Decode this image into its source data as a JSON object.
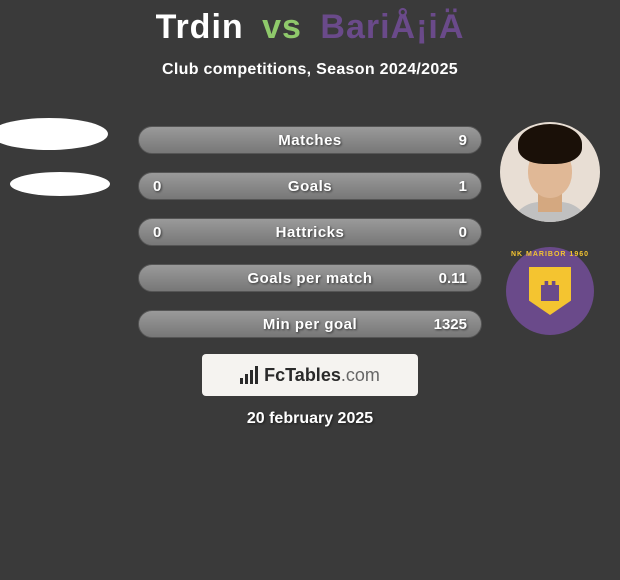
{
  "header": {
    "player1": "Trdin",
    "vs": "vs",
    "player2": "BariÅ¡iÄ",
    "subtitle": "Club competitions, Season 2024/2025",
    "colors": {
      "player1": "#ffffff",
      "vs": "#8fc96b",
      "player2": "#6a4a8a",
      "background": "#3a3a3a"
    }
  },
  "stats": {
    "rows": [
      {
        "label": "Matches",
        "left": "",
        "right": "9"
      },
      {
        "label": "Goals",
        "left": "0",
        "right": "1"
      },
      {
        "label": "Hattricks",
        "left": "0",
        "right": "0"
      },
      {
        "label": "Goals per match",
        "left": "",
        "right": "0.11"
      },
      {
        "label": "Min per goal",
        "left": "",
        "right": "1325"
      }
    ],
    "row_background": "#888888",
    "text_color": "#ffffff"
  },
  "right_side": {
    "crest_text": "NK MARIBOR 1960",
    "crest_bg": "#6a4a8a",
    "crest_shield": "#f4c430"
  },
  "brand": {
    "name": "FcTables",
    "suffix": ".com",
    "box_bg": "#f5f3f0"
  },
  "footer": {
    "date": "20 february 2025"
  }
}
